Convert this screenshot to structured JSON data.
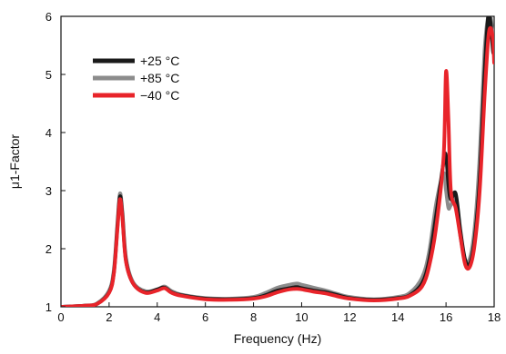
{
  "chart_data": {
    "type": "line",
    "title": "",
    "xlabel": "Frequency (Hz)",
    "ylabel": "μ1-Factor",
    "xlim": [
      0,
      18
    ],
    "ylim": [
      1,
      6
    ],
    "xticks": [
      0,
      2,
      4,
      6,
      8,
      10,
      12,
      14,
      16,
      18
    ],
    "yticks": [
      1,
      2,
      3,
      4,
      5,
      6
    ],
    "grid": false,
    "legend_position": "top-left",
    "series": [
      {
        "name": "+25 °C",
        "color": "#1a1a1a",
        "x": [
          0,
          1,
          1.5,
          2,
          2.2,
          2.35,
          2.45,
          2.55,
          2.7,
          3,
          3.5,
          4,
          4.3,
          4.6,
          5,
          6,
          7,
          8,
          8.5,
          9,
          9.5,
          9.8,
          10,
          10.5,
          11,
          11.5,
          12,
          13,
          14,
          14.5,
          15,
          15.3,
          15.6,
          15.9,
          16.0,
          16.1,
          16.2,
          16.4,
          16.6,
          16.8,
          17.0,
          17.2,
          17.4,
          17.6,
          17.75,
          17.85,
          17.95,
          18.0
        ],
        "y": [
          1.0,
          1.02,
          1.05,
          1.25,
          1.6,
          2.4,
          2.9,
          2.6,
          1.8,
          1.4,
          1.25,
          1.3,
          1.33,
          1.25,
          1.2,
          1.14,
          1.13,
          1.15,
          1.2,
          1.28,
          1.32,
          1.34,
          1.32,
          1.28,
          1.25,
          1.2,
          1.15,
          1.12,
          1.15,
          1.2,
          1.4,
          1.8,
          2.6,
          3.5,
          3.6,
          3.1,
          2.85,
          2.95,
          2.3,
          1.8,
          1.75,
          2.2,
          3.2,
          5.0,
          6.0,
          5.9,
          5.4,
          5.4
        ]
      },
      {
        "name": "+85 °C",
        "color": "#8c8c8c",
        "x": [
          0,
          1,
          1.5,
          2,
          2.2,
          2.35,
          2.45,
          2.55,
          2.7,
          3,
          3.5,
          4,
          4.3,
          4.6,
          5,
          6,
          7,
          8,
          8.5,
          9,
          9.5,
          9.8,
          10,
          10.5,
          11,
          11.5,
          12,
          13,
          14,
          14.5,
          15,
          15.3,
          15.6,
          15.9,
          16.0,
          16.1,
          16.2,
          16.4,
          16.6,
          16.8,
          17.0,
          17.2,
          17.4,
          17.6,
          17.75,
          17.85,
          17.95,
          18.0
        ],
        "y": [
          1.0,
          1.02,
          1.06,
          1.28,
          1.65,
          2.45,
          2.95,
          2.65,
          1.85,
          1.42,
          1.27,
          1.3,
          1.35,
          1.27,
          1.21,
          1.15,
          1.14,
          1.17,
          1.24,
          1.33,
          1.38,
          1.4,
          1.38,
          1.33,
          1.28,
          1.22,
          1.17,
          1.13,
          1.17,
          1.24,
          1.5,
          1.95,
          2.8,
          3.3,
          3.0,
          2.7,
          2.75,
          2.85,
          2.2,
          1.8,
          1.85,
          2.4,
          3.6,
          5.4,
          6.0,
          6.0,
          5.7,
          5.7
        ]
      },
      {
        "name": "−40 °C",
        "color": "#e8242a",
        "x": [
          0,
          1,
          1.5,
          2,
          2.2,
          2.35,
          2.45,
          2.55,
          2.7,
          3,
          3.5,
          4,
          4.3,
          4.6,
          5,
          6,
          7,
          8,
          8.5,
          9,
          9.5,
          9.8,
          10,
          10.5,
          11,
          11.5,
          12,
          13,
          14,
          14.5,
          15,
          15.3,
          15.6,
          15.9,
          16.0,
          16.1,
          16.2,
          16.4,
          16.6,
          16.8,
          17.0,
          17.2,
          17.4,
          17.6,
          17.75,
          17.85,
          17.95,
          18.0
        ],
        "y": [
          1.0,
          1.02,
          1.05,
          1.24,
          1.58,
          2.35,
          2.85,
          2.55,
          1.78,
          1.4,
          1.24,
          1.28,
          1.32,
          1.24,
          1.19,
          1.13,
          1.12,
          1.14,
          1.18,
          1.25,
          1.3,
          1.31,
          1.3,
          1.26,
          1.23,
          1.18,
          1.14,
          1.11,
          1.14,
          1.19,
          1.35,
          1.7,
          2.4,
          3.6,
          5.05,
          4.2,
          3.0,
          2.7,
          2.2,
          1.72,
          1.7,
          2.1,
          3.0,
          4.6,
          5.6,
          5.8,
          5.6,
          5.2
        ]
      }
    ]
  }
}
